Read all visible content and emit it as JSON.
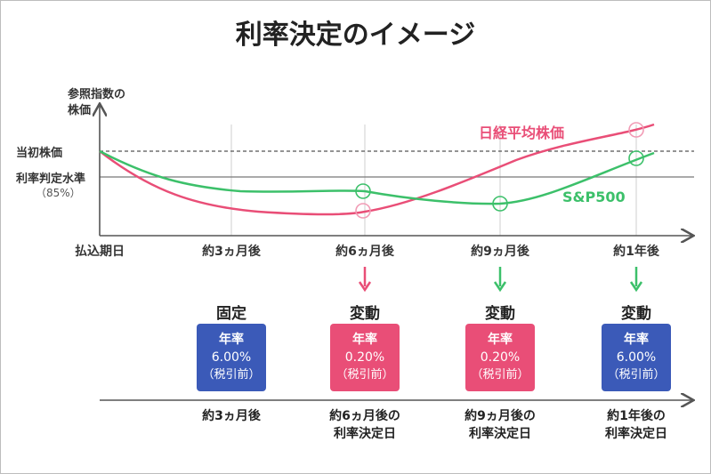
{
  "title": "利率決定のイメージ",
  "y_axis": {
    "label_line1": "参照指数の",
    "label_line2": "株価",
    "initial_label": "当初株価",
    "threshold_label": "利率判定水準",
    "threshold_sub": "（85%）"
  },
  "x_ticks": [
    "払込期日",
    "約3ヵ月後",
    "約6ヵ月後",
    "約9ヵ月後",
    "約1年後"
  ],
  "series": [
    {
      "name": "日経平均株価",
      "color": "#e94e77"
    },
    {
      "name": "S&P500",
      "color": "#3cc06a"
    }
  ],
  "periods": [
    {
      "type": "固定",
      "arrow": "none",
      "box_color": "#3b5ab8",
      "rate_label": "年率",
      "rate": "6.00%",
      "note": "（税引前）",
      "decision_line1": "約3ヵ月後",
      "decision_line2": ""
    },
    {
      "type": "変動",
      "arrow": "#e94e77",
      "box_color": "#e94e77",
      "rate_label": "年率",
      "rate": "0.20%",
      "note": "（税引前）",
      "decision_line1": "約6ヵ月後の",
      "decision_line2": "利率決定日"
    },
    {
      "type": "変動",
      "arrow": "#3cc06a",
      "box_color": "#e94e77",
      "rate_label": "年率",
      "rate": "0.20%",
      "note": "（税引前）",
      "decision_line1": "約9ヵ月後の",
      "decision_line2": "利率決定日"
    },
    {
      "type": "変動",
      "arrow": "#3cc06a",
      "box_color": "#3b5ab8",
      "rate_label": "年率",
      "rate": "6.00%",
      "note": "（税引前）",
      "decision_line1": "約1年後の",
      "decision_line2": "利率決定日"
    }
  ]
}
